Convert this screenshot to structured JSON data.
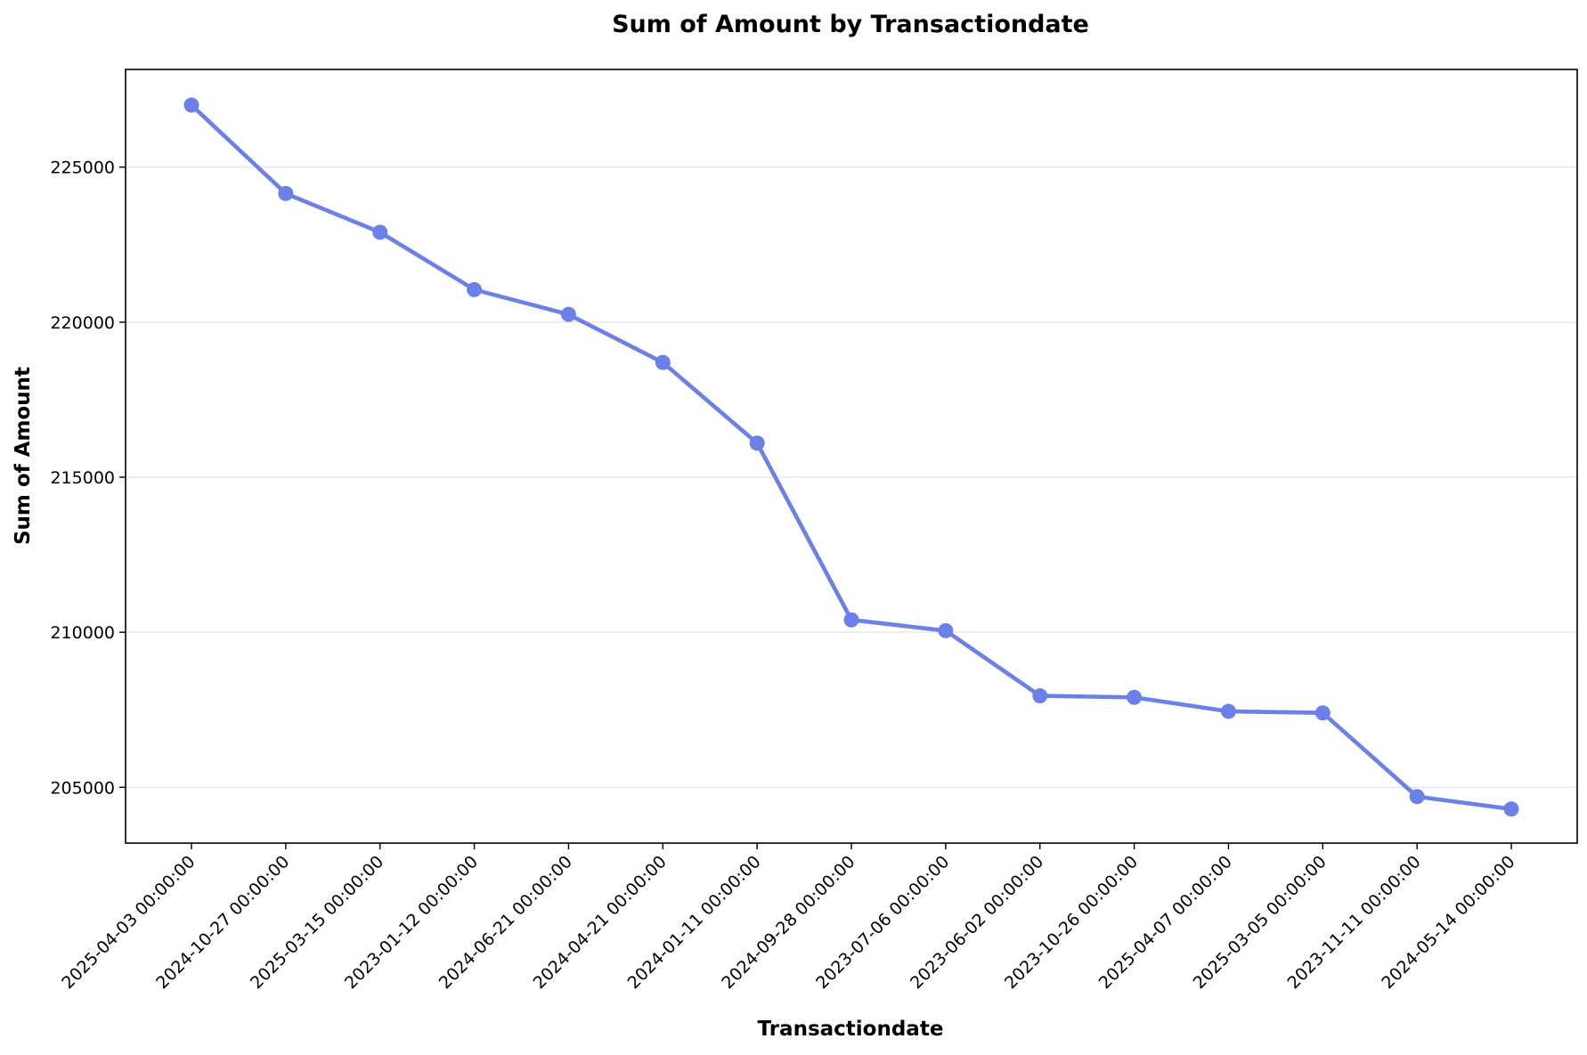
{
  "chart_data": {
    "type": "line",
    "title": "Sum of Amount by Transactiondate",
    "xlabel": "Transactiondate",
    "ylabel": "Sum of Amount",
    "categories": [
      "2025-04-03 00:00:00",
      "2024-10-27 00:00:00",
      "2025-03-15 00:00:00",
      "2023-01-12 00:00:00",
      "2024-06-21 00:00:00",
      "2024-04-21 00:00:00",
      "2024-01-11 00:00:00",
      "2024-09-28 00:00:00",
      "2023-07-06 00:00:00",
      "2023-06-02 00:00:00",
      "2023-10-26 00:00:00",
      "2025-04-07 00:00:00",
      "2025-03-05 00:00:00",
      "2023-11-11 00:00:00",
      "2024-05-14 00:00:00"
    ],
    "values": [
      227000,
      224150,
      222900,
      221050,
      220250,
      218700,
      216100,
      210400,
      210050,
      207950,
      207900,
      207450,
      207400,
      204700,
      204300
    ],
    "ylim": [
      203200,
      228150
    ],
    "yticks": [
      205000,
      210000,
      215000,
      220000,
      225000
    ],
    "ytick_labels": [
      "205000",
      "210000",
      "215000",
      "220000",
      "225000"
    ],
    "grid": "y-axis only",
    "legend": "none",
    "line_color": "#6b80e8"
  }
}
